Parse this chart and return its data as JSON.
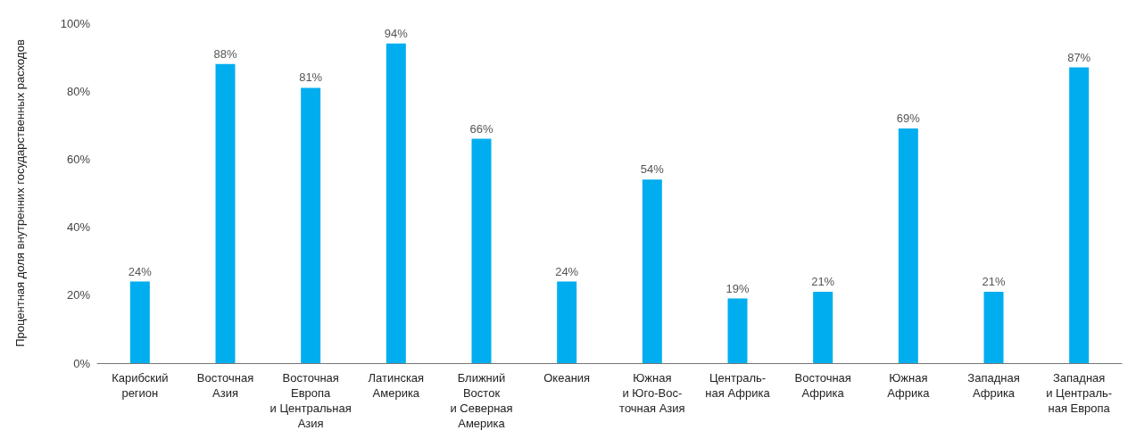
{
  "chart_data": {
    "type": "bar",
    "ylabel": "Процентная доля внутренних государственных расходов",
    "categories": [
      "Карибский\nрегион",
      "Восточная\nАзия",
      "Восточная\nЕвропа\nи Центральная\nАзия",
      "Латинская\nАмерика",
      "Ближний\nВосток\nи Северная\nАмерика",
      "Океания",
      "Южная\nи Юго-Вос-\nточная Азия",
      "Централь-\nная Африка",
      "Восточная\nАфрика",
      "Южная\nАфрика",
      "Западная\nАфрика",
      "Западная\nи Централь-\nная Европа"
    ],
    "values": [
      24,
      88,
      81,
      94,
      66,
      24,
      54,
      19,
      21,
      69,
      21,
      87
    ],
    "color": "#00aeef",
    "value_labels": [
      "24%",
      "88%",
      "81%",
      "94%",
      "66%",
      "24%",
      "54%",
      "19%",
      "21%",
      "69%",
      "21%",
      "87%"
    ],
    "ylim": [
      0,
      100
    ],
    "yticks": [
      {
        "value": 0,
        "label": "0%"
      },
      {
        "value": 20,
        "label": "20%"
      },
      {
        "value": 40,
        "label": "40%"
      },
      {
        "value": 60,
        "label": "60%"
      },
      {
        "value": 80,
        "label": "80%"
      },
      {
        "value": 100,
        "label": "100%"
      }
    ],
    "grid": false
  }
}
